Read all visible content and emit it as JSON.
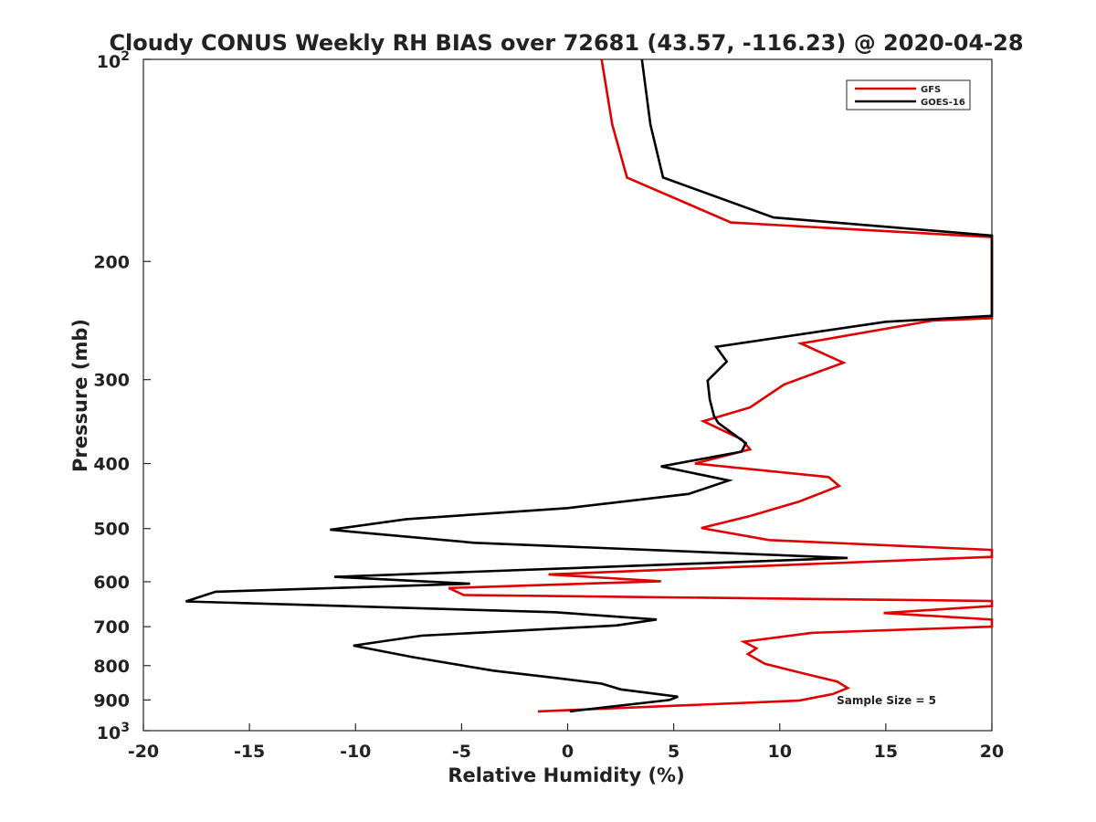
{
  "chart_data": {
    "type": "line",
    "title": "Cloudy CONUS Weekly RH BIAS over 72681 (43.57, -116.23) @ 2020-04-28",
    "xlabel": "Relative Humidity (%)",
    "ylabel": "Pressure (mb)",
    "xlim": [
      -20,
      20
    ],
    "ylim": [
      1000,
      100
    ],
    "y_scale": "log",
    "y_reversed": true,
    "grid": false,
    "legend_position": "top-right",
    "x_ticks": [
      {
        "value": -20,
        "label": "-20"
      },
      {
        "value": -15,
        "label": "-15"
      },
      {
        "value": -10,
        "label": "-10"
      },
      {
        "value": -5,
        "label": "-5"
      },
      {
        "value": 0,
        "label": "0"
      },
      {
        "value": 5,
        "label": "5"
      },
      {
        "value": 10,
        "label": "10"
      },
      {
        "value": 15,
        "label": "15"
      },
      {
        "value": 20,
        "label": "20"
      }
    ],
    "y_ticks": [
      {
        "value": 200,
        "label": "200"
      },
      {
        "value": 300,
        "label": "300"
      },
      {
        "value": 400,
        "label": "400"
      },
      {
        "value": 500,
        "label": "500"
      },
      {
        "value": 600,
        "label": "600"
      },
      {
        "value": 700,
        "label": "700"
      },
      {
        "value": 800,
        "label": "800"
      },
      {
        "value": 900,
        "label": "900"
      }
    ],
    "y_tick_top": {
      "value": 100,
      "base": "10",
      "exp": "2"
    },
    "y_tick_bottom": {
      "value": 1000,
      "base": "10",
      "exp": "3"
    },
    "annotation": "Sample Size = 5",
    "series": [
      {
        "name": "GFS",
        "color": "#e00000",
        "points": [
          [
            1.6,
            100
          ],
          [
            2.1,
            125
          ],
          [
            2.8,
            150
          ],
          [
            7.7,
            175
          ],
          [
            20,
            184
          ],
          [
            20,
            243
          ],
          [
            17.2,
            245
          ],
          [
            11,
            265
          ],
          [
            13,
            283
          ],
          [
            10.2,
            305
          ],
          [
            8.6,
            330
          ],
          [
            6.4,
            346
          ],
          [
            8.2,
            368
          ],
          [
            8.6,
            381
          ],
          [
            6,
            400
          ],
          [
            12.3,
            419
          ],
          [
            12.8,
            432
          ],
          [
            10.9,
            456
          ],
          [
            8.6,
            479
          ],
          [
            6.3,
            499
          ],
          [
            9.5,
            520
          ],
          [
            20,
            538
          ],
          [
            20,
            551
          ],
          [
            -0.9,
            585
          ],
          [
            4.4,
            599
          ],
          [
            -5.6,
            613
          ],
          [
            -4.9,
            628
          ],
          [
            20,
            641
          ],
          [
            20,
            652
          ],
          [
            14.9,
            668
          ],
          [
            20,
            683
          ],
          [
            20,
            700
          ],
          [
            11.5,
            715
          ],
          [
            8.3,
            737
          ],
          [
            8.9,
            754
          ],
          [
            8.5,
            769
          ],
          [
            9.3,
            795
          ],
          [
            10.8,
            817
          ],
          [
            12.7,
            845
          ],
          [
            13.2,
            864
          ],
          [
            12.5,
            882
          ],
          [
            10.9,
            902
          ],
          [
            -1.4,
            936
          ]
        ]
      },
      {
        "name": "GOES-16",
        "color": "#000000",
        "points": [
          [
            3.5,
            100
          ],
          [
            3.9,
            125
          ],
          [
            4.5,
            150
          ],
          [
            9.7,
            172
          ],
          [
            20,
            183
          ],
          [
            20,
            241
          ],
          [
            15,
            246
          ],
          [
            7,
            268
          ],
          [
            7.5,
            282
          ],
          [
            6.6,
            301
          ],
          [
            6.7,
            321
          ],
          [
            6.9,
            340
          ],
          [
            7.1,
            348
          ],
          [
            8.4,
            373
          ],
          [
            8.2,
            384
          ],
          [
            4.4,
            404
          ],
          [
            7.6,
            424
          ],
          [
            5.7,
            444
          ],
          [
            0,
            466
          ],
          [
            -7.6,
            484
          ],
          [
            -11.2,
            502
          ],
          [
            -4.4,
            525
          ],
          [
            13.2,
            553
          ],
          [
            -11,
            590
          ],
          [
            -4.6,
            604
          ],
          [
            -16.6,
            621
          ],
          [
            -18,
            642
          ],
          [
            -0.6,
            666
          ],
          [
            4.2,
            683
          ],
          [
            2.3,
            697
          ],
          [
            -6.9,
            722
          ],
          [
            -10.1,
            747
          ],
          [
            -7.3,
            777
          ],
          [
            -3.5,
            814
          ],
          [
            -0.5,
            835
          ],
          [
            1.6,
            851
          ],
          [
            2.5,
            868
          ],
          [
            5.2,
            890
          ],
          [
            4.8,
            900
          ],
          [
            0.1,
            936
          ]
        ]
      }
    ]
  }
}
